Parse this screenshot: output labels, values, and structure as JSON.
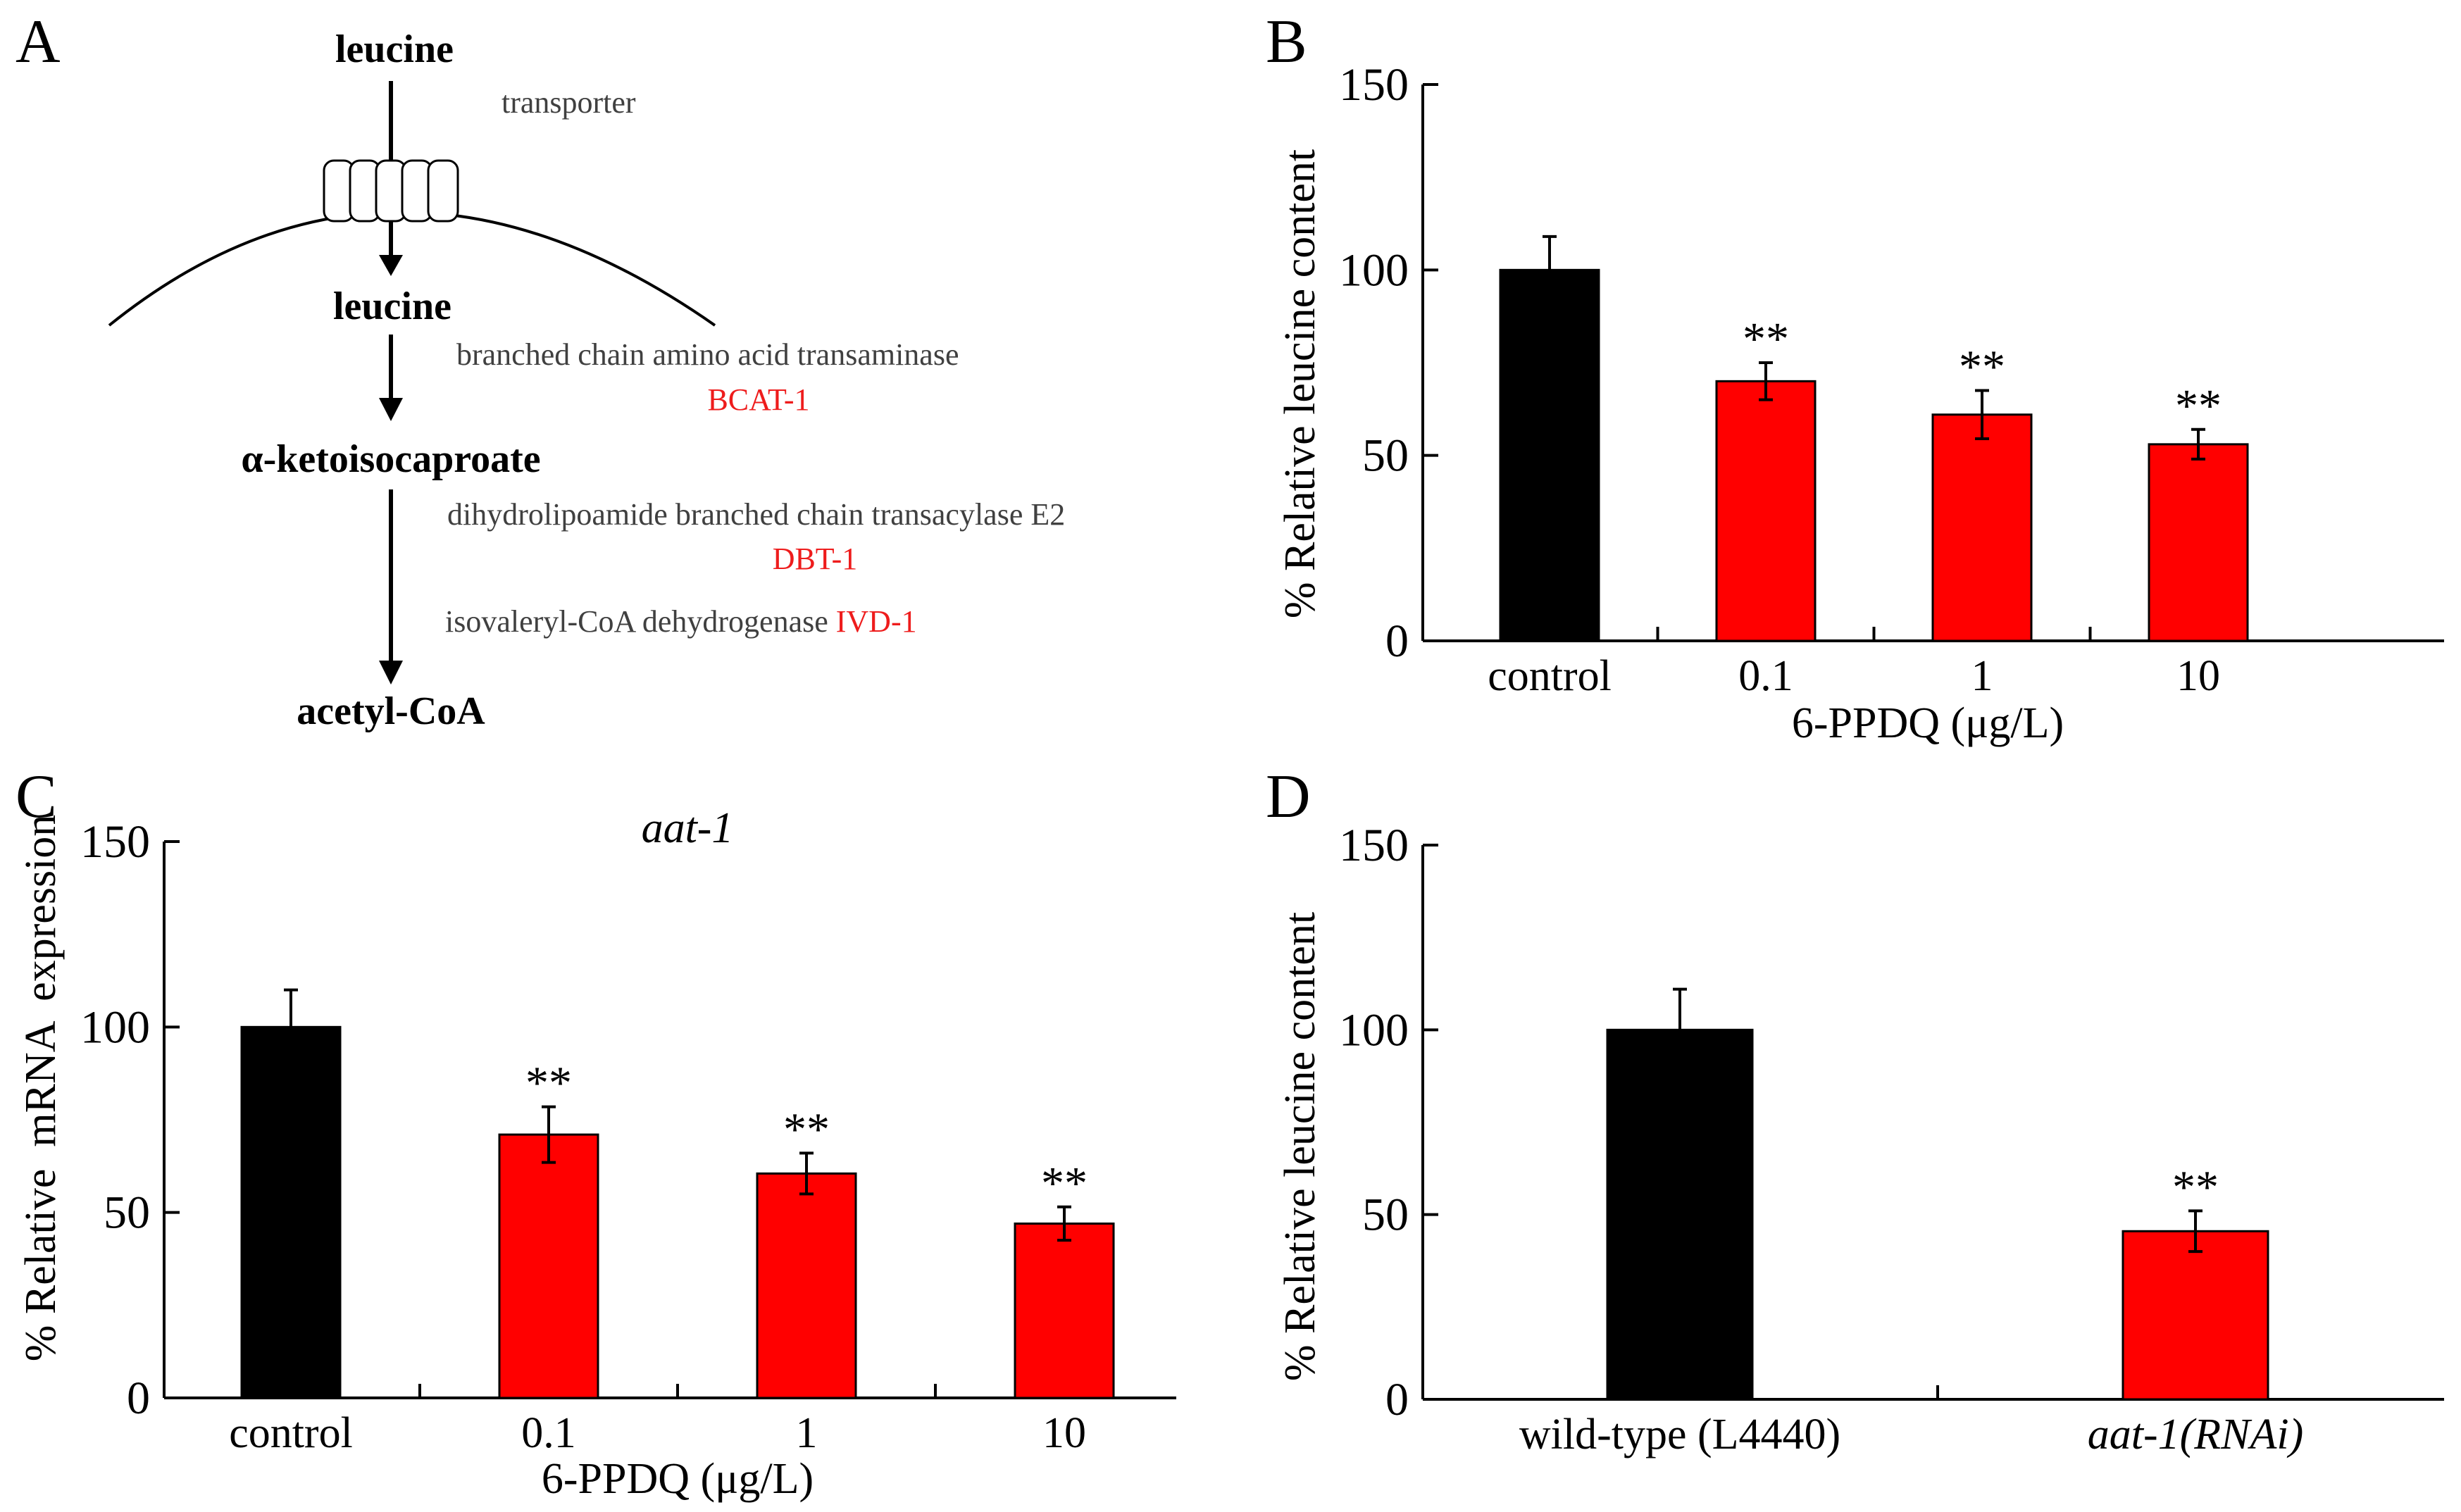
{
  "panels": {
    "A": {
      "letter": "A",
      "metabolites": {
        "leucine_outside": "leucine",
        "leucine_inside": "leucine",
        "ketoisocaproate": "α-ketoisocaproate",
        "acetyl_coa": "acetyl-CoA"
      },
      "enzymes": {
        "transporter": "transporter",
        "bcat_name": "branched chain amino acid transaminase",
        "bcat_gene": "BCAT-1",
        "dbt_name": "dihydrolipoamide branched chain transacylase E2",
        "dbt_gene": "DBT-1",
        "ivd_name": "isovaleryl-CoA dehydrogenase",
        "ivd_gene": "IVD-1"
      }
    },
    "B": {
      "letter": "B"
    },
    "C": {
      "letter": "C"
    },
    "D": {
      "letter": "D"
    }
  },
  "colors": {
    "control": "#000000",
    "treatment": "#ff0000",
    "gene_label": "#ee1c1c",
    "enzyme_label": "#404040"
  },
  "chart_data": [
    {
      "panel": "B",
      "type": "bar",
      "title": "",
      "categories": [
        "control",
        "0.1",
        "1",
        "10"
      ],
      "values": [
        100,
        70,
        61,
        53
      ],
      "errors": [
        9,
        5,
        6.5,
        4
      ],
      "significance": [
        "",
        "**",
        "**",
        "**"
      ],
      "colors": [
        "#000000",
        "#ff0000",
        "#ff0000",
        "#ff0000"
      ],
      "xlabel": "6-PPDQ (μg/L)",
      "ylabel": "% Relative leucine content",
      "ylim": [
        0,
        150
      ],
      "yticks": [
        0,
        50,
        100,
        150
      ],
      "grid": false
    },
    {
      "panel": "C",
      "type": "bar",
      "title": "aat-1",
      "categories": [
        "control",
        "0.1",
        "1",
        "10"
      ],
      "values": [
        100,
        71,
        60.5,
        47
      ],
      "errors": [
        10,
        7.5,
        5.5,
        4.5
      ],
      "significance": [
        "",
        "**",
        "**",
        "**"
      ],
      "colors": [
        "#000000",
        "#ff0000",
        "#ff0000",
        "#ff0000"
      ],
      "xlabel": "6-PPDQ (μg/L)",
      "ylabel": "% Relative  mRNA  expression",
      "ylim": [
        0,
        150
      ],
      "yticks": [
        0,
        50,
        100,
        150
      ],
      "grid": false
    },
    {
      "panel": "D",
      "type": "bar",
      "title": "",
      "categories": [
        "wild-type (L4440)",
        "aat-1(RNAi)"
      ],
      "values": [
        100,
        45.5
      ],
      "errors": [
        11,
        5.5
      ],
      "significance": [
        "",
        "**"
      ],
      "colors": [
        "#000000",
        "#ff0000"
      ],
      "xlabel": "",
      "ylabel": "% Relative leucine content",
      "ylim": [
        0,
        150
      ],
      "yticks": [
        0,
        50,
        100,
        150
      ],
      "grid": false
    }
  ]
}
